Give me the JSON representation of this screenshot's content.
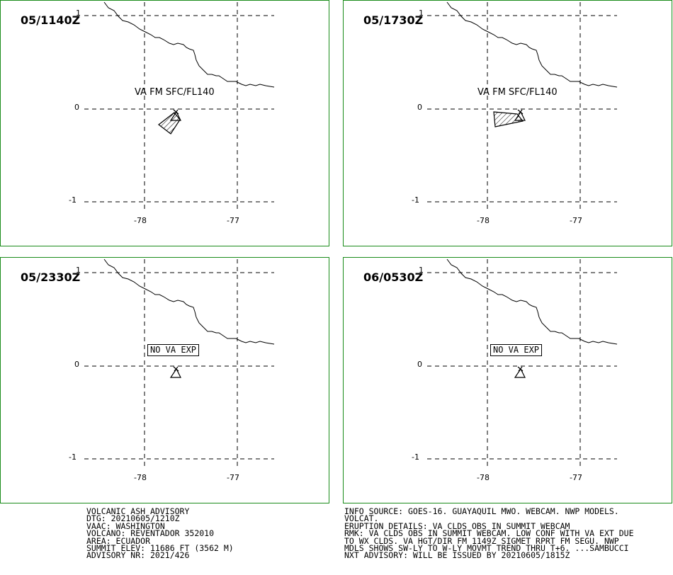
{
  "panels": [
    {
      "time": "05/1140Z",
      "label_type": "va",
      "label": "VA FM SFC/FL140",
      "cloud": "small"
    },
    {
      "time": "05/1730Z",
      "label_type": "va",
      "label": "VA FM SFC/FL140",
      "cloud": "large"
    },
    {
      "time": "05/2330Z",
      "label_type": "nova",
      "label": "NO VA EXP",
      "cloud": "none"
    },
    {
      "time": "06/0530Z",
      "label_type": "nova",
      "label": "NO VA EXP",
      "cloud": "none"
    }
  ],
  "axis": {
    "lat_labels": [
      "1",
      "0",
      "-1"
    ],
    "lon_labels": [
      "-78",
      "-77"
    ]
  },
  "advisory_left": [
    "VOLCANIC ASH ADVISORY",
    "DTG: 20210605/1210Z",
    "VAAC: WASHINGTON",
    "VOLCANO: REVENTADOR 352010",
    "AREA: ECUADOR",
    "SUMMIT ELEV: 11686 FT (3562 M)",
    "ADVISORY NR: 2021/426"
  ],
  "advisory_right": [
    "INFO SOURCE: GOES-16. GUAYAQUIL MWO. WEBCAM. NWP MODELS.",
    "VOLCAT.",
    "ERUPTION DETAILS: VA CLDS OBS IN SUMMIT WEBCAM",
    "RMK: VA CLDS OBS IN SUMMIT WEBCAM. LOW CONF WITH VA EXT DUE",
    "TO WX CLDS. VA HGT/DIR FM 1149Z SIGMET RPRT FM SEGU. NWP",
    "MDLS SHOWS SW-LY TO W-LY MOVMT TREND THRU T+6. ...SAMBUCCI",
    "NXT ADVISORY: WILL BE ISSUED BY 20210605/1815Z"
  ],
  "colors": {
    "frame": "#1a8c1a",
    "ink": "#000000"
  }
}
